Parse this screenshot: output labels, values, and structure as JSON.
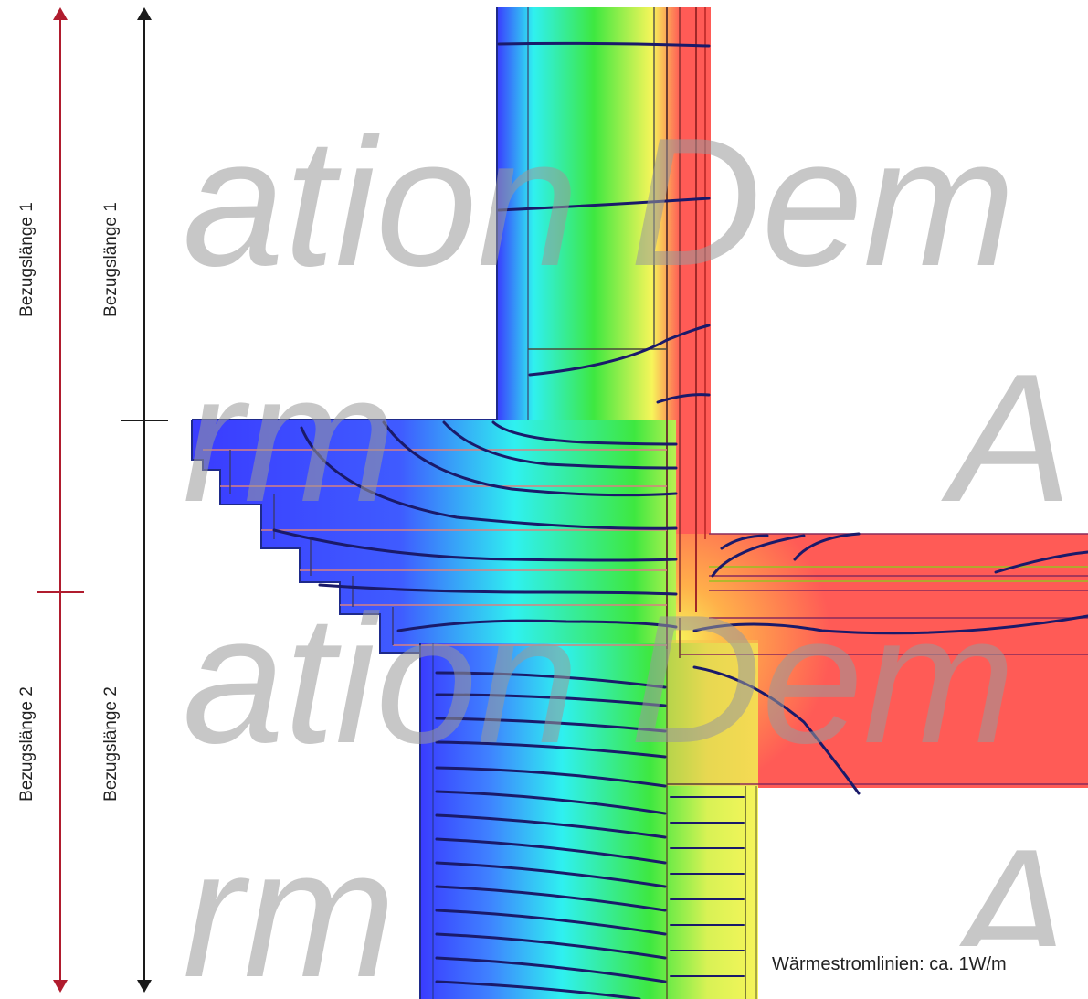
{
  "labels": {
    "left_1": "Bezugslänge 1",
    "left_2": "Bezugslänge 2",
    "right_1": "Bezugslänge 1",
    "right_2": "Bezugslänge 2"
  },
  "caption": "Wärmestromlinien:  ca. 1W/m",
  "watermark": {
    "row1": "ation Dem",
    "row2": "rm",
    "row3": "A"
  },
  "colors": {
    "red_dimension": "#b01c2e",
    "black_dimension": "#1a1a1a",
    "cold": "#3a3cff",
    "cyan": "#2ff0f0",
    "green": "#3ee840",
    "yellow": "#f7f55a",
    "warm": "#ff5b56",
    "flux_line": "#1a1a6a"
  }
}
